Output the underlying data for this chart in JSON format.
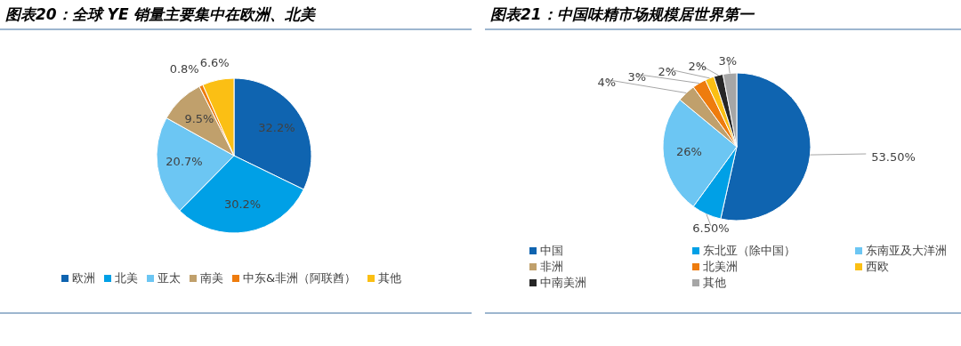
{
  "chart_data": [
    {
      "type": "pie",
      "title": "图表20：全球 YE 销量主要集中在欧洲、北美",
      "categories": [
        "欧洲",
        "北美",
        "亚太",
        "南美",
        "中东&非洲（阿联酋）",
        "其他"
      ],
      "values": [
        32.2,
        30.2,
        20.7,
        9.5,
        0.8,
        6.6
      ],
      "colors": [
        "#0f64b0",
        "#00a0e6",
        "#6cc6f3",
        "#c0a06c",
        "#ee7c0e",
        "#fbbf14"
      ],
      "value_labels": [
        "32.2%",
        "30.2%",
        "20.7%",
        "9.5%",
        "0.8%",
        "6.6%"
      ],
      "legend": "bottom"
    },
    {
      "type": "pie",
      "title": "图表21：中国味精市场规模居世界第一",
      "categories": [
        "中国",
        "东北亚（除中国）",
        "东南亚及大洋洲",
        "非洲",
        "北美洲",
        "西欧",
        "中南美洲",
        "其他"
      ],
      "values": [
        53.5,
        6.5,
        26,
        4,
        3,
        2,
        2,
        3
      ],
      "colors": [
        "#0f64b0",
        "#00a0e6",
        "#6cc6f3",
        "#c0a06c",
        "#ee7c0e",
        "#fbbf14",
        "#262626",
        "#a6a6a6"
      ],
      "value_labels": [
        "53.50%",
        "6.50%",
        "26%",
        "4%",
        "3%",
        "2%",
        "2%",
        "3%"
      ],
      "legend": "bottom"
    }
  ]
}
